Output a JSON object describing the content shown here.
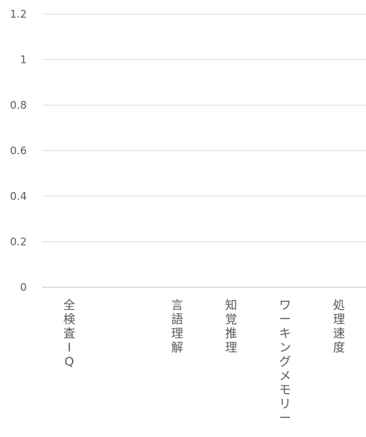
{
  "chart_data": {
    "type": "bar",
    "categories": [
      "全検査IQ",
      "",
      "言語理解",
      "知覚推理",
      "ワーキングメモリー",
      "処理速度"
    ],
    "series": [
      {
        "values": [
          null,
          null,
          null,
          null,
          null,
          null
        ]
      }
    ],
    "yticks": [
      "0",
      "0.2",
      "0.4",
      "0.6",
      "0.8",
      "1",
      "1.2"
    ],
    "ylim": [
      0,
      1.2
    ],
    "grid": true,
    "legend": "none",
    "colors": {
      "grid": "#d9d9d9",
      "axis": "#bfbfbf",
      "text": "#595959"
    }
  }
}
